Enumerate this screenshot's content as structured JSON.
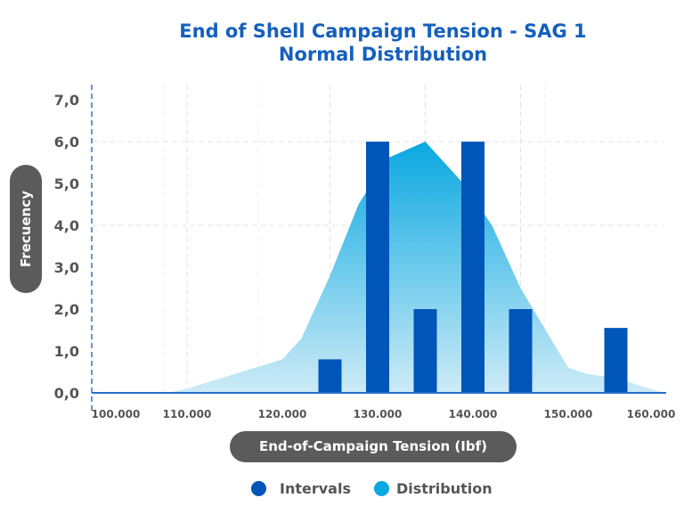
{
  "chart_data": {
    "type": "bar",
    "title": "End of Shell Campaign Tension - SAG 1",
    "subtitle": "Normal Distribution",
    "xlabel": "End-of-Campaign Tension (Ibf)",
    "ylabel": "Frecuency",
    "xlim": [
      100000,
      160000
    ],
    "ylim": [
      0,
      7
    ],
    "x_ticks": [
      "100.000",
      "110.000",
      "120.000",
      "130.000",
      "140.000",
      "150.000",
      "160.000"
    ],
    "y_ticks": [
      "0,0",
      "1,0",
      "2,0",
      "3,0",
      "4,0",
      "5,0",
      "6,0",
      "7,0"
    ],
    "grid": true,
    "legend_position": "bottom",
    "series": [
      {
        "name": "Intervals",
        "type": "bar",
        "color": "#0055b8",
        "x": [
          125000,
          130000,
          135000,
          140000,
          145000,
          155000
        ],
        "values": [
          0.8,
          6.0,
          2.0,
          6.0,
          2.0,
          1.55
        ]
      },
      {
        "name": "Distribution",
        "type": "area",
        "color": "#0aa8e0",
        "x": [
          100000,
          108000,
          110000,
          115000,
          120000,
          122000,
          125000,
          128000,
          131000,
          135000,
          139000,
          142000,
          145000,
          150000,
          152000,
          155000,
          160000
        ],
        "values": [
          0,
          0,
          0.1,
          0.45,
          0.8,
          1.3,
          2.8,
          4.5,
          5.6,
          6.0,
          5.0,
          4.0,
          2.5,
          0.6,
          0.45,
          0.35,
          0
        ]
      }
    ]
  }
}
